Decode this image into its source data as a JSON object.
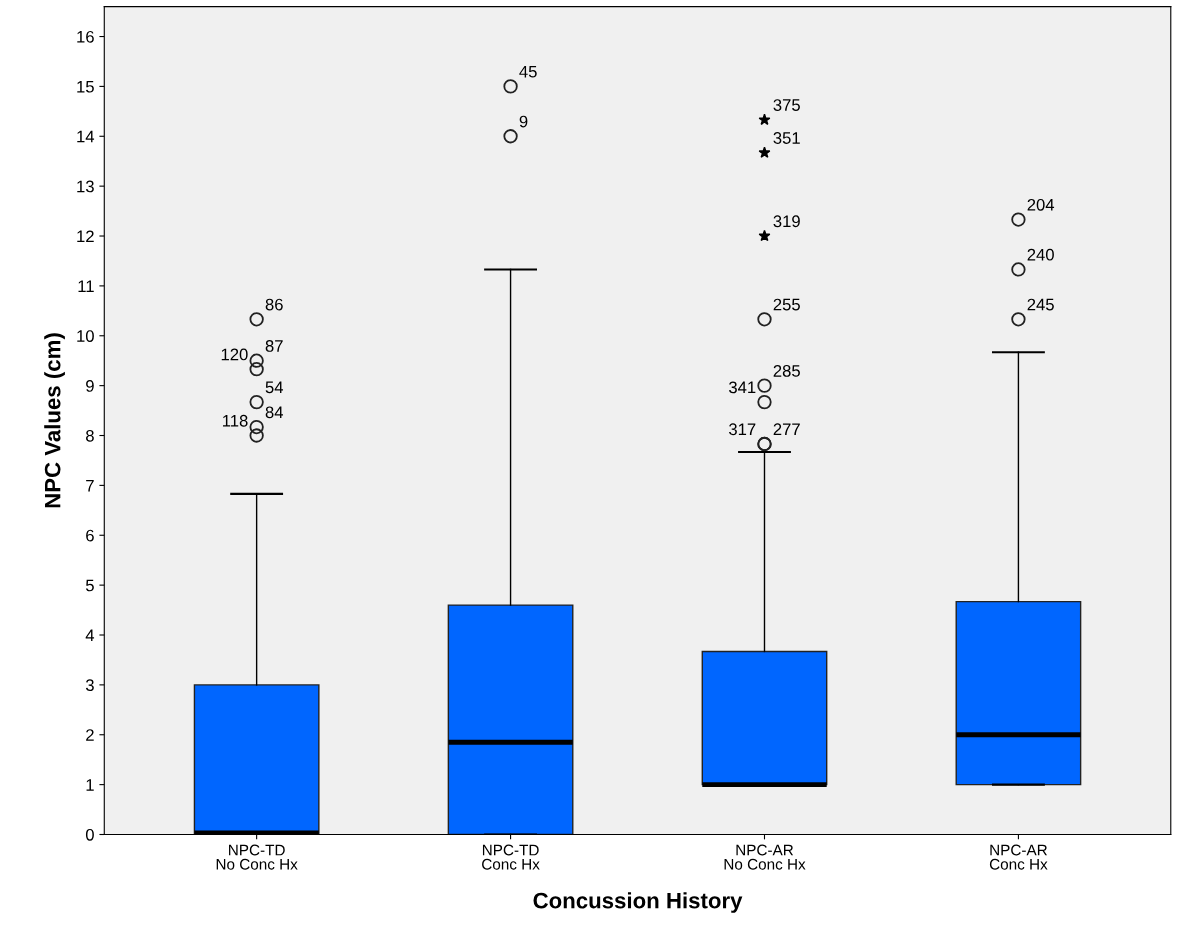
{
  "chart_data": {
    "type": "box",
    "xlabel": "Concussion History",
    "ylabel": "NPC Values (cm)",
    "categories": [
      "NPC-TD\nNo Conc Hx",
      "NPC-TD\nConc Hx",
      "NPC-AR\nNo Conc Hx",
      "NPC-AR\nConc Hx"
    ],
    "color": "#0066ff",
    "ylim": [
      0,
      16.6
    ],
    "yticks": [
      0,
      1,
      2,
      3,
      4,
      5,
      6,
      7,
      8,
      9,
      10,
      11,
      12,
      13,
      14,
      15,
      16
    ],
    "grid": false,
    "boxes": [
      {
        "low": 0,
        "q1": 0,
        "median": 0.03,
        "q3": 3.0,
        "high": 6.83,
        "outliers": [
          10.33,
          9.5,
          9.33,
          8.67,
          8.17,
          8.0
        ]
      },
      {
        "low": 0,
        "q1": 0,
        "median": 1.85,
        "q3": 4.6,
        "high": 11.33,
        "outliers": [
          15.0,
          14.0
        ]
      },
      {
        "low": 1.0,
        "q1": 1.0,
        "median": 1.0,
        "q3": 3.67,
        "high": 7.67,
        "outliers": [
          14.33,
          13.67,
          12.0,
          10.33,
          9.0,
          8.67,
          7.83,
          7.83
        ]
      },
      {
        "low": 1.0,
        "q1": 1.0,
        "median": 2.0,
        "q3": 4.67,
        "high": 9.67,
        "outliers": [
          12.33,
          11.33,
          10.33
        ]
      }
    ],
    "annotations": [
      "86",
      "87",
      "120",
      "54",
      "84",
      "118",
      "45",
      "9",
      "375",
      "351",
      "319",
      "255",
      "285",
      "341",
      "277",
      "317",
      "204",
      "240",
      "245"
    ]
  }
}
